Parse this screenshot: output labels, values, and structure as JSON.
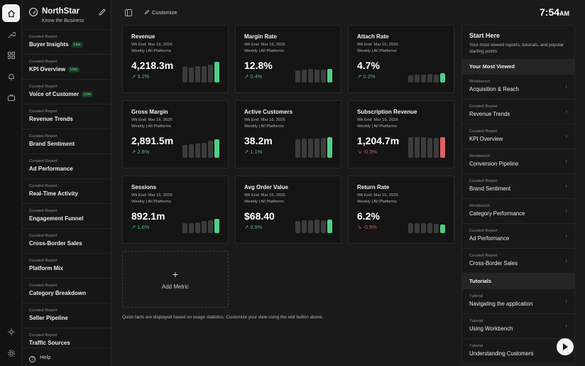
{
  "app": {
    "name": "NorthStar",
    "tagline": "Know the Business"
  },
  "topbar": {
    "customize_label": "Customize",
    "time": "7:54",
    "meridiem": "AM"
  },
  "sidebar": {
    "items": [
      {
        "type": "Curated Report",
        "label": "Buyer Insights",
        "badge": "Live"
      },
      {
        "type": "Curated Report",
        "label": "KPI Overview",
        "badge": "Live"
      },
      {
        "type": "Curated Report",
        "label": "Voice of Customer",
        "badge": "Live"
      },
      {
        "type": "Curated Report",
        "label": "Revenue Trends",
        "badge": ""
      },
      {
        "type": "Curated Report",
        "label": "Brand Sentiment",
        "badge": ""
      },
      {
        "type": "Curated Report",
        "label": "Ad Performance",
        "badge": ""
      },
      {
        "type": "Curated Report",
        "label": "Real-Time Activity",
        "badge": ""
      },
      {
        "type": "Curated Report",
        "label": "Engagement Funnel",
        "badge": ""
      },
      {
        "type": "Curated Report",
        "label": "Cross-Border Sales",
        "badge": ""
      },
      {
        "type": "Curated Report",
        "label": "Platform Mix",
        "badge": ""
      },
      {
        "type": "Curated Report",
        "label": "Category Breakdown",
        "badge": ""
      },
      {
        "type": "Curated Report",
        "label": "Seller Pipeline",
        "badge": ""
      },
      {
        "type": "Curated Report",
        "label": "Traffic Sources",
        "badge": ""
      }
    ],
    "help_label": "Help"
  },
  "metrics": [
    {
      "title": "Revenue",
      "week": "Wk End: Mar 16, 2026",
      "scope": "Weekly | All Platforms",
      "value": "4,218.3m",
      "delta": "3.2%",
      "direction": "up",
      "bars": [
        0.72,
        0.7,
        0.76,
        0.78,
        0.82,
        0.95
      ]
    },
    {
      "title": "Margin Rate",
      "week": "Wk End: Mar 16, 2026",
      "scope": "Weekly | All Platforms",
      "value": "12.8%",
      "delta": "0.4%",
      "direction": "up",
      "bars": [
        0.55,
        0.6,
        0.62,
        0.6,
        0.6,
        0.62
      ]
    },
    {
      "title": "Attach Rate",
      "week": "Wk End: Mar 16, 2026",
      "scope": "Weekly | All Platforms",
      "value": "4.7%",
      "delta": "0.2%",
      "direction": "up",
      "bars": [
        0.32,
        0.36,
        0.38,
        0.4,
        0.38,
        0.42
      ]
    },
    {
      "title": "Gross Margin",
      "week": "Wk End: Mar 16, 2026",
      "scope": "Weekly | All Platforms",
      "value": "2,891.5m",
      "delta": "2.8%",
      "direction": "up",
      "bars": [
        0.6,
        0.62,
        0.65,
        0.7,
        0.8,
        0.85
      ]
    },
    {
      "title": "Active Customers",
      "week": "Wk End: Mar 16, 2026",
      "scope": "Weekly | All Platforms",
      "value": "38.2m",
      "delta": "1.1%",
      "direction": "up",
      "bars": [
        0.88,
        0.9,
        0.9,
        0.9,
        0.92,
        0.95
      ]
    },
    {
      "title": "Subscription Revenue",
      "week": "Wk End: Mar 16, 2026",
      "scope": "Weekly | All Platforms",
      "value": "1,204.7m",
      "delta": "-0.3%",
      "direction": "down",
      "bars": [
        0.98,
        0.98,
        0.96,
        0.94,
        0.92,
        0.95
      ]
    },
    {
      "title": "Sessions",
      "week": "Wk End: Mar 16, 2026",
      "scope": "Weekly | All Platforms",
      "value": "892.1m",
      "delta": "1.6%",
      "direction": "up",
      "bars": [
        0.45,
        0.48,
        0.5,
        0.55,
        0.6,
        0.68
      ]
    },
    {
      "title": "Avg Order Value",
      "week": "Wk End: Mar 16, 2026",
      "scope": "Weekly | All Platforms",
      "value": "$68.40",
      "delta": "0.9%",
      "direction": "up",
      "bars": [
        0.55,
        0.6,
        0.6,
        0.62,
        0.6,
        0.62
      ]
    },
    {
      "title": "Return Rate",
      "week": "Wk End: Mar 16, 2026",
      "scope": "Weekly | All Platforms",
      "value": "6.2%",
      "delta": "-0.5%",
      "direction": "up",
      "bars": [
        0.48,
        0.48,
        0.45,
        0.45,
        0.42,
        0.4
      ]
    }
  ],
  "add_metric": {
    "plus": "+",
    "label": "Add Metric"
  },
  "footnote": "Quick facts are displayed based on usage statistics. Customize your view using the edit button above.",
  "panel": {
    "title": "Start Here",
    "description": "Your most viewed reports, tutorials, and popular starting points",
    "most_viewed_title": "Your Most Viewed",
    "most_viewed": [
      {
        "type": "Workbench",
        "label": "Acquisition & Reach"
      },
      {
        "type": "Curated Report",
        "label": "Revenue Trends"
      },
      {
        "type": "Curated Report",
        "label": "KPI Overview"
      },
      {
        "type": "Workbench",
        "label": "Conversion Pipeline"
      },
      {
        "type": "Curated Report",
        "label": "Brand Sentiment"
      },
      {
        "type": "Workbench",
        "label": "Category Performance"
      },
      {
        "type": "Curated Report",
        "label": "Ad Performance"
      },
      {
        "type": "Curated Report",
        "label": "Cross-Border Sales"
      }
    ],
    "tutorials_title": "Tutorials",
    "tutorials": [
      {
        "type": "Tutorial",
        "label": "Navigating the application"
      },
      {
        "type": "Tutorial",
        "label": "Using Workbench"
      },
      {
        "type": "Tutorial",
        "label": "Understanding Customers"
      }
    ]
  },
  "colors": {
    "up": "#4fcf85",
    "down": "#e06262",
    "neutral_bar": "#3c3c3c"
  },
  "icons": [
    "home-icon",
    "wrench-icon",
    "grid-icon",
    "bell-icon",
    "briefcase-icon",
    "sun-icon",
    "gear-icon",
    "pencil-icon",
    "sidebar-toggle-icon",
    "help-icon",
    "chevron-right-icon",
    "play-icon"
  ]
}
